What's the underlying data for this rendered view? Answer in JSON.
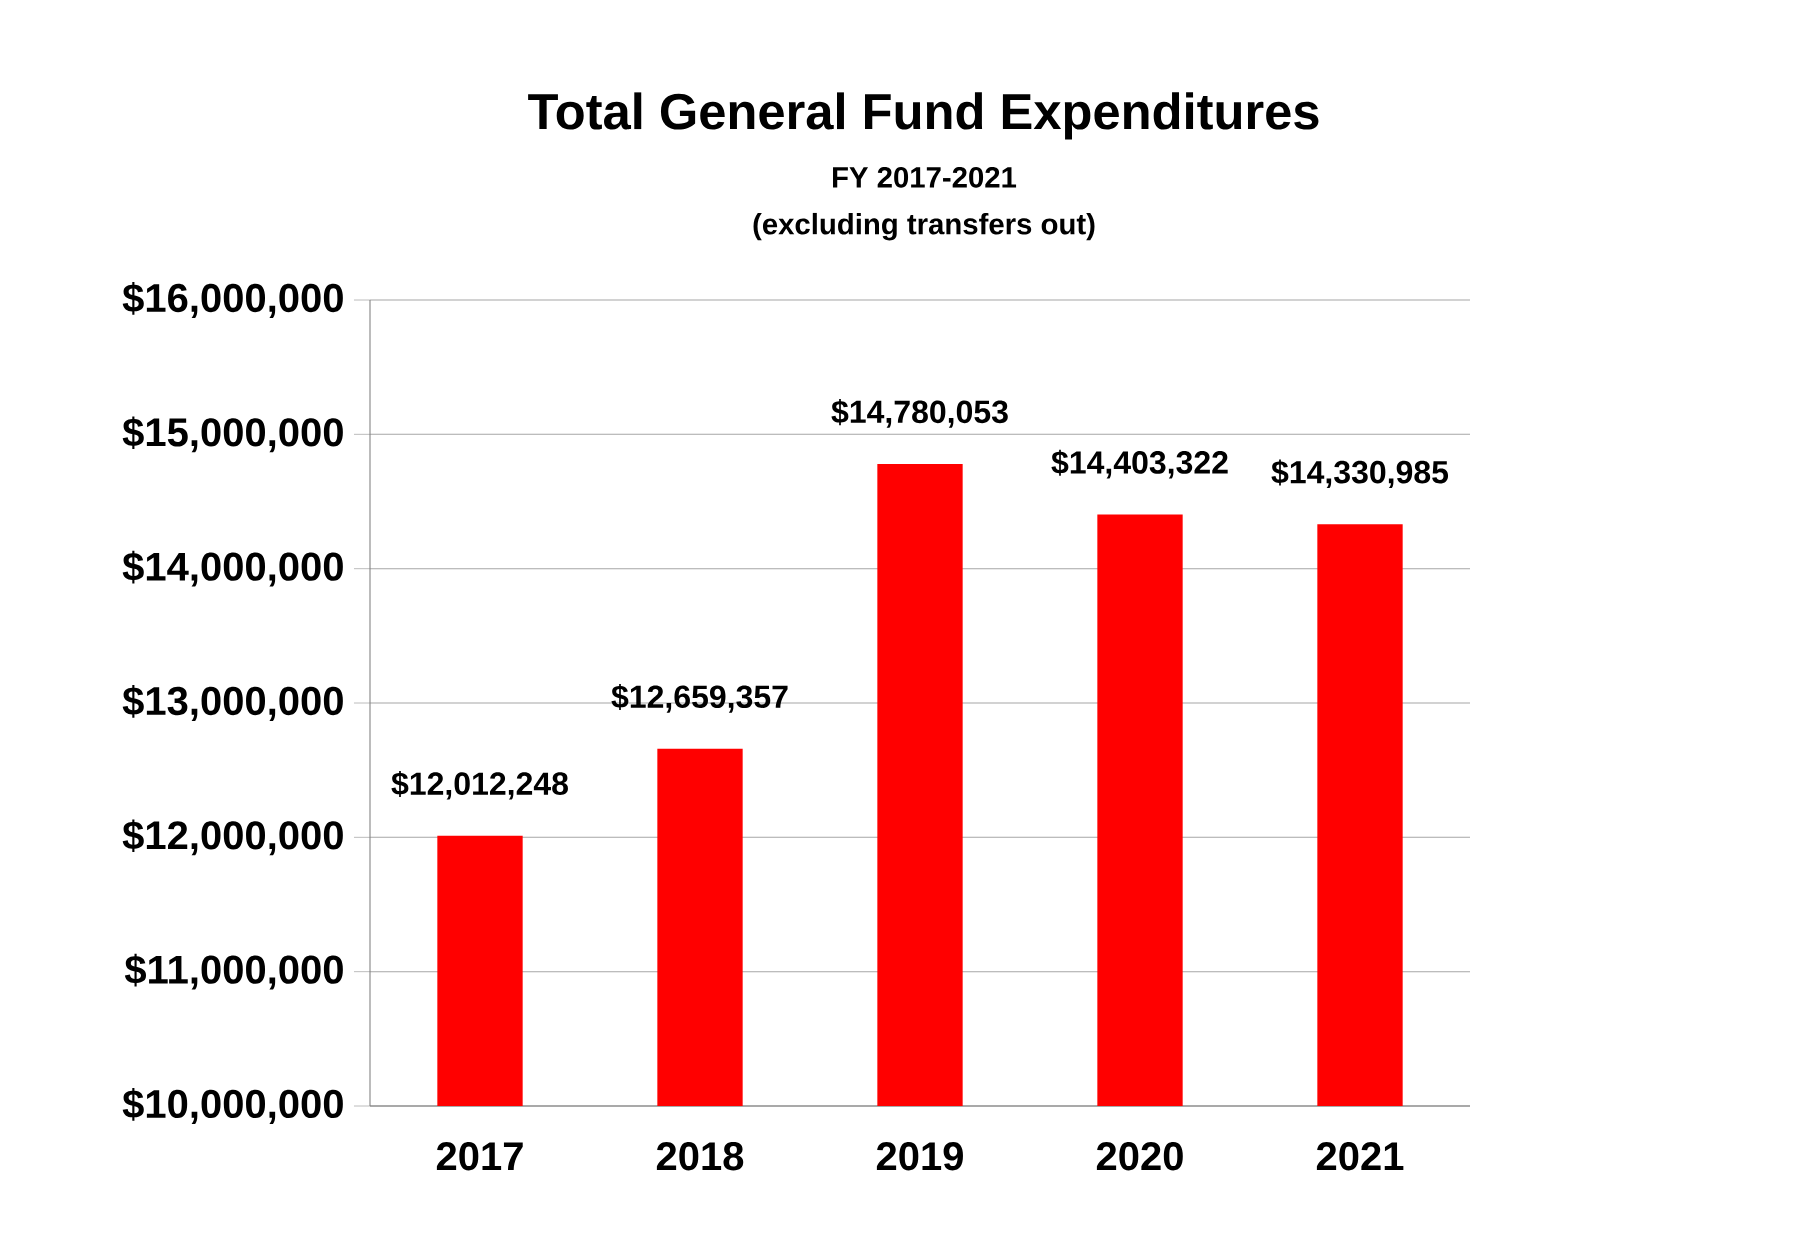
{
  "chart_data": {
    "type": "bar",
    "title": "Total General Fund Expenditures",
    "subtitle": "FY 2017-2021",
    "annotations": [
      "(excluding transfers out)"
    ],
    "categories": [
      "2017",
      "2018",
      "2019",
      "2020",
      "2021"
    ],
    "values": [
      12012248,
      12659357,
      14780053,
      14403322,
      14330985
    ],
    "value_labels": [
      "$12,012,248",
      "$12,659,357",
      "$14,780,053",
      "$14,403,322",
      "$14,330,985"
    ],
    "color": "#ff0000",
    "ylim": [
      10000000,
      16000000
    ],
    "yticks": [
      {
        "value": 10000000,
        "label": "$10,000,000"
      },
      {
        "value": 11000000,
        "label": "$11,000,000"
      },
      {
        "value": 12000000,
        "label": "$12,000,000"
      },
      {
        "value": 13000000,
        "label": "$13,000,000"
      },
      {
        "value": 14000000,
        "label": "$14,000,000"
      },
      {
        "value": 15000000,
        "label": "$15,000,000"
      },
      {
        "value": 16000000,
        "label": "$16,000,000"
      }
    ],
    "grid": "y"
  }
}
